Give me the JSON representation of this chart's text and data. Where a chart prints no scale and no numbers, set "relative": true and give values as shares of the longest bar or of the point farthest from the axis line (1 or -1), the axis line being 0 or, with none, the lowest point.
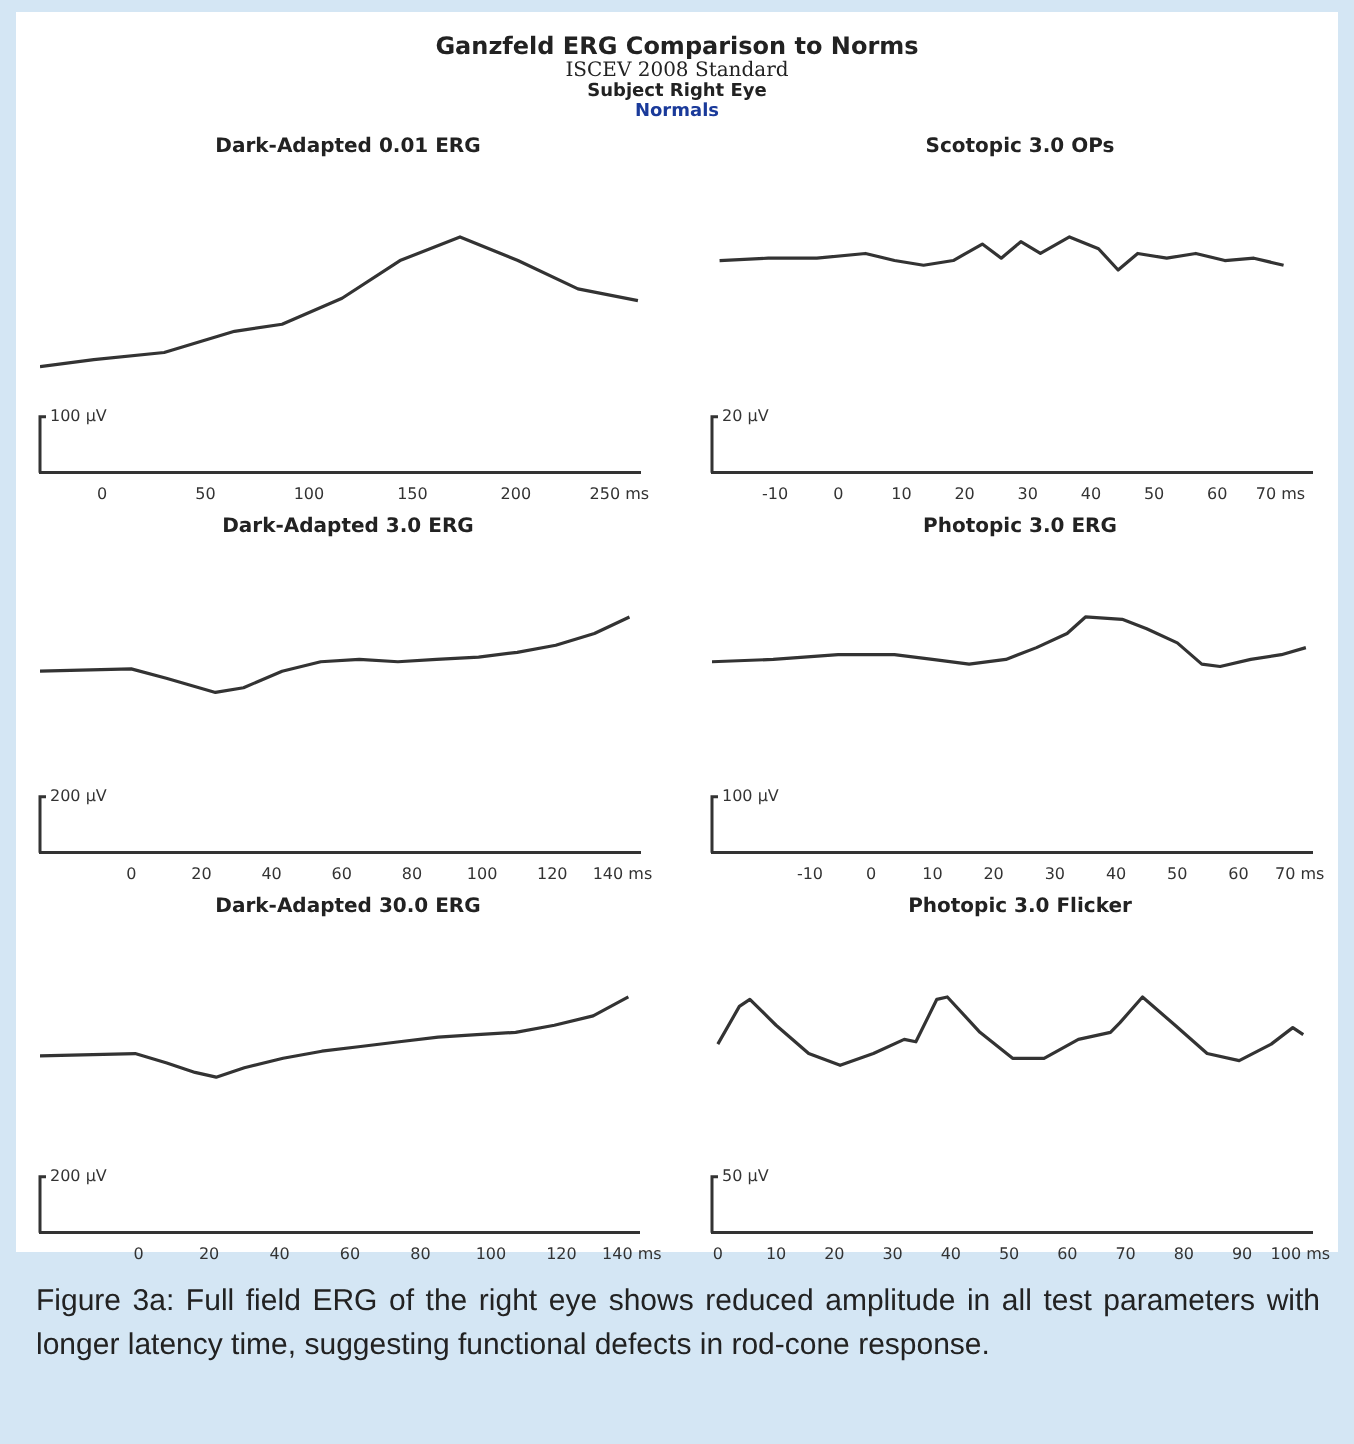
{
  "chart_data": [
    {
      "type": "other",
      "title": "Ganzfeld ERG Comparison to Norms",
      "subtitle": "ISCEV 2008 Standard",
      "annotations": [
        "Subject Right Eye",
        "Normals"
      ]
    },
    {
      "type": "line",
      "title": "Dark-Adapted 0.01 ERG",
      "ylabel": "100 µV",
      "relative": true,
      "marker": "none",
      "xlim": [
        -30,
        260
      ],
      "xticks": [
        0,
        50,
        100,
        150,
        200,
        {
          "value": 250,
          "label": "250 ms"
        }
      ],
      "series": [
        {
          "color": "#333333",
          "x": [
            -30,
            -4,
            30,
            64,
            87,
            116,
            144,
            173,
            201,
            230,
            259
          ],
          "values": [
            0.45,
            0.48,
            0.51,
            0.6,
            0.63,
            0.74,
            0.9,
            1,
            0.9,
            0.78,
            0.73
          ]
        }
      ]
    },
    {
      "type": "line",
      "title": "Scotopic 3.0 OPs",
      "ylabel": "20 µV",
      "relative": true,
      "marker": "none",
      "xlim": [
        -20,
        75
      ],
      "xticks": [
        -10,
        0,
        10,
        20,
        30,
        40,
        50,
        60,
        {
          "value": 70,
          "label": "70 ms"
        }
      ],
      "series": [
        {
          "color": "#333333",
          "x": [
            -18.8,
            -11.1,
            -3.4,
            4.3,
            8.9,
            13.5,
            18.2,
            22.8,
            25.8,
            28.9,
            32,
            36.6,
            41.2,
            44.3,
            47.4,
            52,
            56.6,
            61.2,
            65.8,
            70.5
          ],
          "values": [
            0.9,
            0.91,
            0.91,
            0.93,
            0.9,
            0.88,
            0.9,
            0.97,
            0.91,
            0.98,
            0.93,
            1,
            0.95,
            0.86,
            0.93,
            0.91,
            0.93,
            0.9,
            0.91,
            0.88
          ]
        }
      ]
    },
    {
      "type": "line",
      "title": "Dark-Adapted 3.0 ERG",
      "ylabel": "200 µV",
      "relative": true,
      "marker": "none",
      "xlim": [
        -26,
        145
      ],
      "xticks": [
        0,
        20,
        40,
        60,
        80,
        100,
        120,
        {
          "value": 140,
          "label": "140 ms"
        }
      ],
      "series": [
        {
          "color": "#333333",
          "x": [
            -26,
            0,
            10,
            24,
            32,
            43,
            54,
            65,
            76,
            87,
            99,
            110,
            121,
            132,
            142
          ],
          "values": [
            0.77,
            0.78,
            0.74,
            0.68,
            0.7,
            0.77,
            0.81,
            0.82,
            0.81,
            0.82,
            0.83,
            0.85,
            0.88,
            0.93,
            1
          ]
        }
      ]
    },
    {
      "type": "line",
      "title": "Photopic 3.0 ERG",
      "ylabel": "100 µV",
      "relative": true,
      "marker": "none",
      "xlim": [
        -26,
        72
      ],
      "xticks": [
        -10,
        0,
        10,
        20,
        30,
        40,
        50,
        60,
        {
          "value": 70,
          "label": "70 ms"
        }
      ],
      "series": [
        {
          "color": "#333333",
          "x": [
            -26,
            -16,
            -5.4,
            -0.8,
            3.8,
            10,
            16,
            22,
            27,
            32,
            35,
            41,
            45,
            50,
            54,
            57,
            62,
            67,
            71
          ],
          "values": [
            0.81,
            0.82,
            0.84,
            0.84,
            0.84,
            0.82,
            0.8,
            0.82,
            0.87,
            0.93,
            1,
            0.99,
            0.95,
            0.89,
            0.8,
            0.79,
            0.82,
            0.84,
            0.87
          ]
        }
      ]
    },
    {
      "type": "line",
      "title": "Dark-Adapted 30.0 ERG",
      "ylabel": "200 µV",
      "relative": true,
      "marker": "none",
      "xlim": [
        -28,
        142
      ],
      "xticks": [
        0,
        20,
        40,
        60,
        80,
        100,
        120,
        {
          "value": 140,
          "label": "140 ms"
        }
      ],
      "series": [
        {
          "color": "#333333",
          "x": [
            -28,
            -1,
            8,
            16,
            22,
            30,
            41,
            52,
            63,
            74,
            85,
            96,
            107,
            118,
            129,
            139
          ],
          "values": [
            0.75,
            0.76,
            0.72,
            0.68,
            0.66,
            0.7,
            0.74,
            0.77,
            0.79,
            0.81,
            0.83,
            0.84,
            0.85,
            0.88,
            0.92,
            1
          ]
        }
      ]
    },
    {
      "type": "line",
      "title": "Photopic 3.0 Flicker",
      "ylabel": "50 µV",
      "relative": true,
      "marker": "none",
      "xlim": [
        -1,
        102
      ],
      "xticks": [
        0,
        10,
        20,
        30,
        40,
        50,
        60,
        70,
        80,
        90,
        {
          "value": 100,
          "label": "100 ms"
        }
      ],
      "series": [
        {
          "color": "#333333",
          "x": [
            0,
            3.7,
            5.5,
            10,
            15.6,
            21,
            26.7,
            32,
            34,
            37.6,
            39.4,
            45,
            50.6,
            56,
            61.9,
            67.4,
            69,
            72.9,
            78.5,
            84,
            89.5,
            95,
            98.7,
            100.5
          ],
          "values": [
            0.8,
            0.96,
            0.99,
            0.88,
            0.76,
            0.71,
            0.76,
            0.82,
            0.81,
            0.99,
            1,
            0.85,
            0.74,
            0.74,
            0.82,
            0.85,
            0.89,
            1,
            0.88,
            0.76,
            0.73,
            0.8,
            0.87,
            0.84
          ]
        }
      ]
    },
    {
      "type": "other",
      "annotations": [
        "Figure 3a: Full field ERG of the right eye shows reduced amplitude in all test parameters with longer latency time, suggesting functional defects in rod-cone response."
      ]
    }
  ]
}
